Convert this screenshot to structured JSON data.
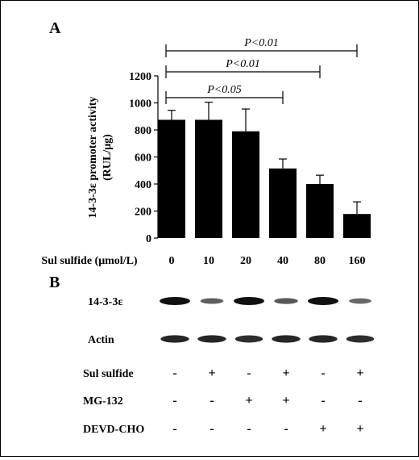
{
  "panel_a_label": "A",
  "panel_b_label": "B",
  "chart_data": {
    "type": "bar",
    "ylabel_line1": "14-3-3ε promoter activity",
    "ylabel_line2": "(RUL/μg)",
    "xlabel": "Sul sulfide (μmol/L)",
    "categories": [
      "0",
      "10",
      "20",
      "40",
      "80",
      "160"
    ],
    "values": [
      875,
      875,
      790,
      515,
      400,
      178
    ],
    "errors": [
      70,
      130,
      165,
      70,
      65,
      90
    ],
    "ylim": [
      0,
      1200
    ],
    "yticks": [
      0,
      200,
      400,
      600,
      800,
      1000,
      1200
    ],
    "bar_color": "#000000",
    "significance": [
      {
        "from": "0",
        "to": "160",
        "label": "P<0.01"
      },
      {
        "from": "0",
        "to": "80",
        "label": "P<0.01"
      },
      {
        "from": "0",
        "to": "40",
        "label": "P<0.05"
      }
    ]
  },
  "blot": {
    "rows": [
      {
        "label": "14-3-3ε",
        "intensities": [
          1.0,
          0.45,
          1.0,
          0.5,
          1.0,
          0.4
        ]
      },
      {
        "label": "Actin",
        "intensities": [
          0.85,
          0.85,
          0.8,
          0.85,
          0.85,
          0.8
        ]
      }
    ],
    "treatments": [
      {
        "label": "Sul sulfide",
        "marks": [
          "-",
          "+",
          "-",
          "+",
          "-",
          "+"
        ]
      },
      {
        "label": "MG-132",
        "marks": [
          "-",
          "-",
          "+",
          "+",
          "-",
          "-"
        ]
      },
      {
        "label": "DEVD-CHO",
        "marks": [
          "-",
          "-",
          "-",
          "-",
          "+",
          "+"
        ]
      }
    ]
  }
}
